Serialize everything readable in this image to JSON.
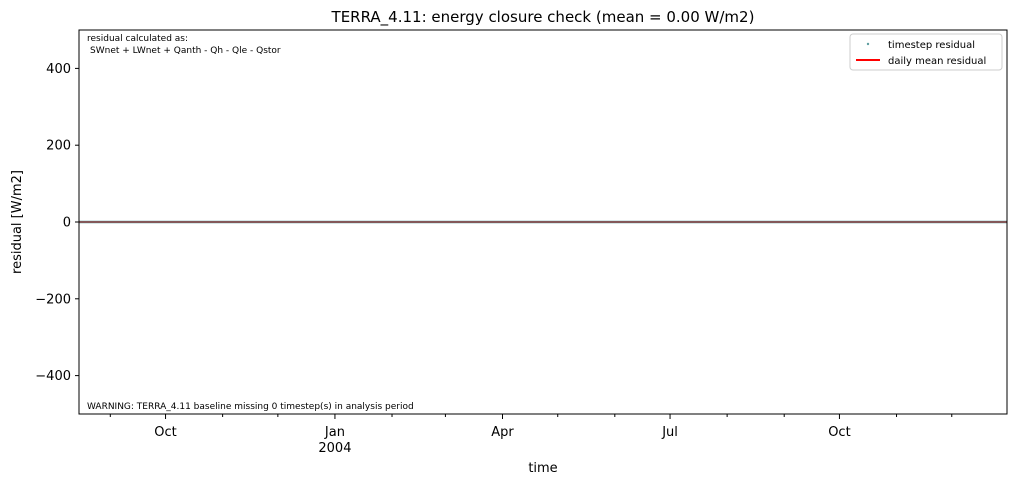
{
  "chart_data": {
    "type": "line",
    "title": "TERRA_4.11: energy closure check (mean = 0.00 W/m2)",
    "xlabel": "time",
    "ylabel": "residual [W/m2]",
    "xlim": [
      "2003-08-15",
      "2004-12-31"
    ],
    "ylim": [
      -500,
      500
    ],
    "yticks": [
      {
        "value": 400,
        "label": "400"
      },
      {
        "value": 200,
        "label": "200"
      },
      {
        "value": 0,
        "label": "0"
      },
      {
        "value": -200,
        "label": "−200"
      },
      {
        "value": -400,
        "label": "−400"
      }
    ],
    "xticks_major": [
      {
        "date": "2003-10-01",
        "label": "Oct",
        "sublabel": ""
      },
      {
        "date": "2004-01-01",
        "label": "Jan",
        "sublabel": "2004"
      },
      {
        "date": "2004-04-01",
        "label": "Apr",
        "sublabel": ""
      },
      {
        "date": "2004-07-01",
        "label": "Jul",
        "sublabel": ""
      },
      {
        "date": "2004-10-01",
        "label": "Oct",
        "sublabel": ""
      }
    ],
    "xticks_minor": [
      "2003-09-01",
      "2003-11-01",
      "2003-12-01",
      "2004-02-01",
      "2004-03-01",
      "2004-05-01",
      "2004-06-01",
      "2004-08-01",
      "2004-09-01",
      "2004-11-01",
      "2004-12-01"
    ],
    "series": [
      {
        "name": "timestep residual",
        "kind": "scatter",
        "color": "#5f9ea0",
        "constant": 0
      },
      {
        "name": "daily mean residual",
        "kind": "line",
        "color": "#ff0000",
        "constant": 0
      }
    ],
    "legend_position": "top-right",
    "annotations": {
      "formula_line1": "residual calculated as:",
      "formula_line2": "SWnet + LWnet + Qanth - Qh - Qle - Qstor",
      "warning": "WARNING: TERRA_4.11 baseline missing 0 timestep(s) in analysis period"
    }
  }
}
